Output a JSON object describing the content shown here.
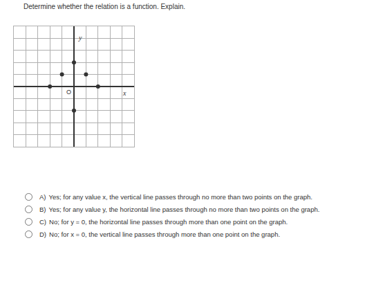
{
  "question": "Determine whether the relation is a function. Explain.",
  "chart_data": {
    "type": "scatter",
    "x": [
      -2,
      -1,
      1,
      2,
      0,
      0
    ],
    "values": [
      0,
      1,
      1,
      0,
      2,
      -2
    ],
    "xlim": [
      -5,
      5
    ],
    "ylim": [
      -5,
      5
    ],
    "xticks": [
      -5,
      -4,
      -3,
      -2,
      -1,
      0,
      1,
      2,
      3,
      4,
      5
    ],
    "yticks": [
      -5,
      -4,
      -3,
      -2,
      -1,
      0,
      1,
      2,
      3,
      4,
      5
    ],
    "grid": true,
    "tick_labels": false,
    "color": "#333333",
    "marker": "circle",
    "xlabel": "x",
    "ylabel": "y",
    "origin_label": "O"
  },
  "options": [
    {
      "letter": "A)",
      "text": "Yes; for any value x, the vertical line passes through no more than two points on the graph."
    },
    {
      "letter": "B)",
      "text": "Yes; for any value y, the horizontal line passes through no more than two points on the graph."
    },
    {
      "letter": "C)",
      "text": "No; for y = 0, the horizontal line passes through more than one point on the graph."
    },
    {
      "letter": "D)",
      "text": "No; for x = 0, the vertical line passes through more than one point on the graph."
    }
  ]
}
